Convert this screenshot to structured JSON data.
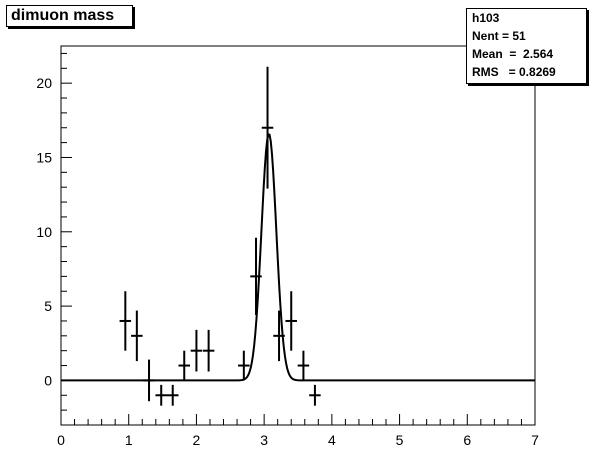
{
  "title": "dimuon mass",
  "stats": {
    "name": "h103",
    "entries": "Nent = 51",
    "mean": "Mean  =  2.564",
    "rms": "RMS   = 0.8269"
  },
  "chart_data": {
    "type": "scatter",
    "title": "dimuon mass",
    "xlabel": "",
    "ylabel": "",
    "xlim": [
      0,
      7
    ],
    "ylim": [
      -3,
      22.5
    ],
    "x_ticks": [
      0,
      1,
      2,
      3,
      4,
      5,
      6,
      7
    ],
    "y_ticks": [
      0,
      5,
      10,
      15,
      20
    ],
    "grid": false,
    "series": [
      {
        "points": [
          {
            "x": 0.95,
            "y": 4,
            "err": 2.0
          },
          {
            "x": 1.12,
            "y": 3,
            "err": 1.7
          },
          {
            "x": 1.3,
            "y": 0,
            "err": 1.4
          },
          {
            "x": 1.48,
            "y": -1,
            "err": 0.7
          },
          {
            "x": 1.65,
            "y": -1,
            "err": 0.7
          },
          {
            "x": 1.82,
            "y": 1,
            "err": 1.0
          },
          {
            "x": 2.0,
            "y": 2,
            "err": 1.4
          },
          {
            "x": 2.18,
            "y": 2,
            "err": 1.4
          },
          {
            "x": 2.7,
            "y": 1,
            "err": 1.0
          },
          {
            "x": 2.88,
            "y": 7,
            "err": 2.6
          },
          {
            "x": 3.05,
            "y": 17,
            "err": 4.1
          },
          {
            "x": 3.22,
            "y": 3,
            "err": 1.7
          },
          {
            "x": 3.4,
            "y": 4,
            "err": 2.0
          },
          {
            "x": 3.58,
            "y": 1,
            "err": 1.0
          },
          {
            "x": 3.75,
            "y": -1,
            "err": 0.7
          }
        ]
      }
    ],
    "fit": {
      "type": "gaussian",
      "amplitude": 16.6,
      "mean": 3.07,
      "sigma": 0.11
    }
  }
}
